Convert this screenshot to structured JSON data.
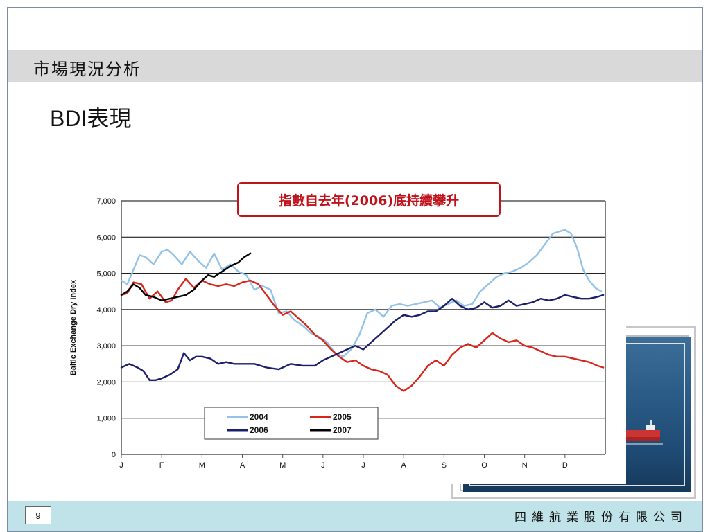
{
  "slide": {
    "section_title": "市場現況分析",
    "heading_latin": "BDI",
    "heading_cjk": "表現",
    "page_number": "9",
    "company": "四維航業股份有限公司"
  },
  "annotation": {
    "text": "指數自去年(2006)底持續攀升",
    "color": "#c0121b"
  },
  "photo": {
    "icon": "ship-photo"
  },
  "chart_data": {
    "type": "line",
    "title": "",
    "xlabel": "",
    "ylabel": "Baltic Exchange Dry Index",
    "ylim": [
      0,
      7000
    ],
    "yticks": [
      0,
      1000,
      2000,
      3000,
      4000,
      5000,
      6000,
      7000
    ],
    "ytick_labels": [
      "0",
      "1,000",
      "2,000",
      "3,000",
      "4,000",
      "5,000",
      "6,000",
      "7,000"
    ],
    "xlim": [
      0,
      12
    ],
    "categories": [
      "J",
      "F",
      "M",
      "A",
      "M",
      "J",
      "J",
      "A",
      "S",
      "O",
      "N",
      "D"
    ],
    "grid": true,
    "legend_position": "lower-left",
    "series": [
      {
        "name": "2004",
        "color": "#92c2e8",
        "x": [
          0,
          0.15,
          0.3,
          0.45,
          0.6,
          0.8,
          1.0,
          1.15,
          1.3,
          1.5,
          1.7,
          1.9,
          2.1,
          2.3,
          2.5,
          2.7,
          2.9,
          3.1,
          3.3,
          3.5,
          3.7,
          3.9,
          4.1,
          4.3,
          4.5,
          4.7,
          4.9,
          5.1,
          5.3,
          5.5,
          5.7,
          5.9,
          6.1,
          6.3,
          6.5,
          6.7,
          6.9,
          7.1,
          7.3,
          7.5,
          7.7,
          7.9,
          8.1,
          8.3,
          8.5,
          8.7,
          8.9,
          9.1,
          9.3,
          9.5,
          9.7,
          9.9,
          10.1,
          10.3,
          10.5,
          10.7,
          10.85,
          11.0,
          11.15,
          11.3,
          11.45,
          11.6,
          11.75,
          11.9
        ],
        "values": [
          4800,
          4700,
          5100,
          5500,
          5450,
          5250,
          5600,
          5650,
          5500,
          5250,
          5600,
          5350,
          5150,
          5550,
          5100,
          5250,
          5050,
          4950,
          4550,
          4650,
          4550,
          3900,
          3950,
          3700,
          3550,
          3350,
          3250,
          3100,
          2800,
          2700,
          2900,
          3300,
          3900,
          4000,
          3800,
          4100,
          4150,
          4100,
          4150,
          4200,
          4250,
          4050,
          4150,
          4250,
          4100,
          4150,
          4500,
          4700,
          4900,
          5000,
          5050,
          5150,
          5300,
          5500,
          5800,
          6100,
          6150,
          6200,
          6100,
          5700,
          5100,
          4800,
          4600,
          4500
        ]
      },
      {
        "name": "2005",
        "color": "#d9261c",
        "x": [
          0,
          0.15,
          0.3,
          0.5,
          0.7,
          0.9,
          1.1,
          1.25,
          1.4,
          1.6,
          1.8,
          2.0,
          2.2,
          2.4,
          2.6,
          2.8,
          3.0,
          3.2,
          3.4,
          3.6,
          3.8,
          4.0,
          4.2,
          4.4,
          4.6,
          4.8,
          5.0,
          5.2,
          5.4,
          5.6,
          5.8,
          6.0,
          6.2,
          6.4,
          6.6,
          6.8,
          7.0,
          7.2,
          7.4,
          7.6,
          7.8,
          8.0,
          8.2,
          8.4,
          8.6,
          8.8,
          9.0,
          9.2,
          9.4,
          9.6,
          9.8,
          10.0,
          10.2,
          10.4,
          10.6,
          10.8,
          11.0,
          11.2,
          11.4,
          11.6,
          11.8,
          11.95
        ],
        "values": [
          4400,
          4450,
          4750,
          4700,
          4300,
          4500,
          4200,
          4250,
          4550,
          4850,
          4600,
          4800,
          4700,
          4650,
          4700,
          4650,
          4750,
          4800,
          4700,
          4400,
          4100,
          3850,
          3950,
          3750,
          3550,
          3300,
          3150,
          2900,
          2700,
          2550,
          2600,
          2450,
          2350,
          2300,
          2200,
          1900,
          1750,
          1900,
          2150,
          2450,
          2600,
          2450,
          2750,
          2950,
          3050,
          2950,
          3150,
          3350,
          3200,
          3100,
          3150,
          3000,
          2950,
          2850,
          2750,
          2700,
          2700,
          2650,
          2600,
          2550,
          2450,
          2400
        ]
      },
      {
        "name": "2006",
        "color": "#1b1f6b",
        "x": [
          0,
          0.2,
          0.4,
          0.55,
          0.7,
          0.85,
          1.0,
          1.2,
          1.4,
          1.55,
          1.7,
          1.85,
          2.0,
          2.2,
          2.4,
          2.6,
          2.8,
          3.0,
          3.3,
          3.6,
          3.9,
          4.2,
          4.5,
          4.8,
          5.0,
          5.2,
          5.4,
          5.6,
          5.8,
          6.0,
          6.2,
          6.4,
          6.6,
          6.8,
          7.0,
          7.2,
          7.4,
          7.6,
          7.8,
          8.0,
          8.2,
          8.4,
          8.6,
          8.8,
          9.0,
          9.2,
          9.4,
          9.6,
          9.8,
          10.0,
          10.2,
          10.4,
          10.6,
          10.8,
          11.0,
          11.2,
          11.4,
          11.6,
          11.8,
          11.95
        ],
        "values": [
          2400,
          2500,
          2400,
          2300,
          2050,
          2050,
          2100,
          2200,
          2350,
          2800,
          2600,
          2700,
          2700,
          2650,
          2500,
          2550,
          2500,
          2500,
          2500,
          2400,
          2350,
          2500,
          2450,
          2450,
          2600,
          2700,
          2800,
          2900,
          3000,
          2900,
          3100,
          3300,
          3500,
          3700,
          3850,
          3800,
          3850,
          3950,
          3950,
          4100,
          4300,
          4100,
          4000,
          4050,
          4200,
          4050,
          4100,
          4250,
          4100,
          4150,
          4200,
          4300,
          4250,
          4300,
          4400,
          4350,
          4300,
          4300,
          4350,
          4400
        ]
      },
      {
        "name": "2007",
        "color": "#000000",
        "x": [
          0,
          0.15,
          0.3,
          0.45,
          0.6,
          0.8,
          1.0,
          1.2,
          1.4,
          1.6,
          1.8,
          2.0,
          2.15,
          2.3,
          2.5,
          2.7,
          2.9,
          3.05,
          3.2
        ],
        "values": [
          4400,
          4500,
          4700,
          4600,
          4400,
          4350,
          4250,
          4300,
          4350,
          4400,
          4550,
          4800,
          4950,
          4900,
          5050,
          5200,
          5300,
          5450,
          5550
        ]
      }
    ]
  }
}
